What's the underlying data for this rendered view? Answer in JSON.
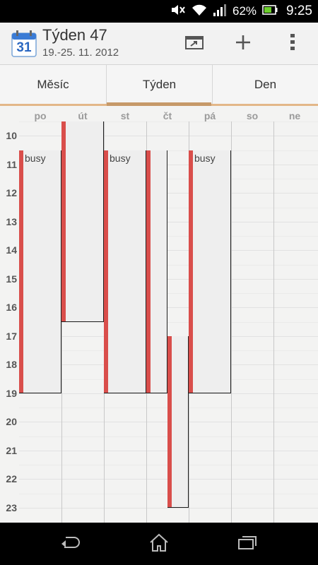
{
  "status_bar": {
    "battery_percent": "62%",
    "time": "9:25",
    "icons": [
      "mute-icon",
      "wifi-icon",
      "signal-icon",
      "battery-icon"
    ]
  },
  "header": {
    "app_icon_day": "31",
    "title": "Týden 47",
    "subtitle": "19.-25. 11. 2012",
    "actions": [
      "go-to-today-icon",
      "add-icon",
      "overflow-menu-icon"
    ]
  },
  "tabs": [
    {
      "label": "Měsíc",
      "selected": false
    },
    {
      "label": "Týden",
      "selected": true
    },
    {
      "label": "Den",
      "selected": false
    }
  ],
  "week": {
    "days": [
      "po",
      "út",
      "st",
      "čt",
      "pá",
      "so",
      "ne"
    ],
    "hours": [
      "10",
      "11",
      "12",
      "13",
      "14",
      "15",
      "16",
      "17",
      "18",
      "19",
      "20",
      "21",
      "22",
      "23"
    ],
    "events": [
      {
        "day": 0,
        "start": 10.5,
        "end": 19,
        "label": "busy"
      },
      {
        "day": 1,
        "start": 9.5,
        "end": 16.5,
        "label": ""
      },
      {
        "day": 2,
        "start": 10.5,
        "end": 19,
        "label": "busy"
      },
      {
        "day": 3,
        "start": 10.5,
        "end": 19,
        "label": ""
      },
      {
        "day": 3,
        "start": 17,
        "end": 23,
        "label": ""
      },
      {
        "day": 4,
        "start": 10.5,
        "end": 19,
        "label": "busy"
      }
    ]
  },
  "colors": {
    "event_accent": "#d94e4b",
    "tab_indicator": "#c69969"
  },
  "nav": [
    "back-icon",
    "home-icon",
    "recent-apps-icon"
  ]
}
